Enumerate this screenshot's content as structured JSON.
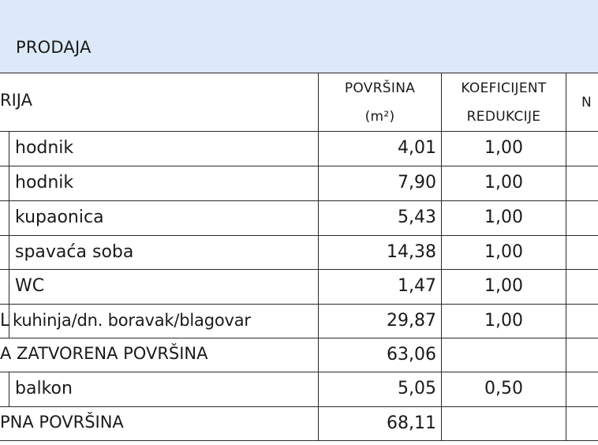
{
  "title": "PRODAJA",
  "headers": {
    "name_partial": "RIJA",
    "area_line1": "POVRŠINA",
    "area_line2": "(m²)",
    "coef_line1": "KOEFICIJENT",
    "coef_line2": "REDUKCIJE",
    "next_partial": "N"
  },
  "rows": [
    {
      "prefix": "",
      "name": "hodnik",
      "area": "4,01",
      "coef": "1,00"
    },
    {
      "prefix": "",
      "name": "hodnik",
      "area": "7,90",
      "coef": "1,00"
    },
    {
      "prefix": "",
      "name": "kupaonica",
      "area": "5,43",
      "coef": "1,00"
    },
    {
      "prefix": "",
      "name": "spavaća soba",
      "area": "14,38",
      "coef": "1,00"
    },
    {
      "prefix": "",
      "name": "WC",
      "area": "1,47",
      "coef": "1,00"
    },
    {
      "prefix": "L",
      "name": "kuhinja/dn. boravak/blagovar",
      "area": "29,87",
      "coef": "1,00"
    }
  ],
  "subtotal": {
    "label": "A ZATVORENA POVRŠINA",
    "area": "63,06"
  },
  "balcony": {
    "prefix": "",
    "name": "balkon",
    "area": "5,05",
    "coef": "0,50"
  },
  "total": {
    "label": "PNA POVRŠINA",
    "area": "68,11"
  }
}
